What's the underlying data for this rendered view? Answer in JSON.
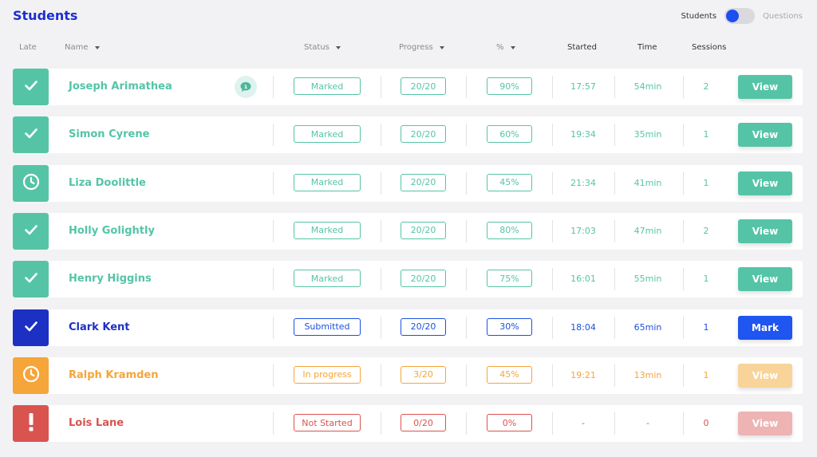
{
  "header": {
    "title": "Students",
    "toggle_left": "Students",
    "toggle_right": "Questions"
  },
  "columns": {
    "late": "Late",
    "name": "Name",
    "status": "Status",
    "progress": "Progress",
    "percent": "%",
    "started": "Started",
    "time": "Time",
    "sessions": "Sessions"
  },
  "colors": {
    "teal": "#55c4a6",
    "orange": "#f5a53a",
    "blue": "#1d3ec9",
    "red": "#d9534f"
  },
  "students": [
    {
      "name": "Joseph Arimathea",
      "status": "Marked",
      "progress": "20/20",
      "percent": "90%",
      "started": "17:57",
      "time": "54min",
      "sessions": "2",
      "action": "View",
      "state": "marked",
      "icon": "check-icon",
      "comment_badge": "1"
    },
    {
      "name": "Simon Cyrene",
      "status": "Marked",
      "progress": "20/20",
      "percent": "60%",
      "started": "19:34",
      "time": "35min",
      "sessions": "1",
      "action": "View",
      "state": "marked",
      "icon": "check-icon"
    },
    {
      "name": "Liza Doolittle",
      "status": "Marked",
      "progress": "20/20",
      "percent": "45%",
      "started": "21:34",
      "time": "41min",
      "sessions": "1",
      "action": "View",
      "state": "marked",
      "icon": "clock-icon"
    },
    {
      "name": "Holly Golightly",
      "status": "Marked",
      "progress": "20/20",
      "percent": "80%",
      "started": "17:03",
      "time": "47min",
      "sessions": "2",
      "action": "View",
      "state": "marked",
      "icon": "check-icon"
    },
    {
      "name": "Henry Higgins",
      "status": "Marked",
      "progress": "20/20",
      "percent": "75%",
      "started": "16:01",
      "time": "55min",
      "sessions": "1",
      "action": "View",
      "state": "marked",
      "icon": "check-icon"
    },
    {
      "name": "Clark Kent",
      "status": "Submitted",
      "progress": "20/20",
      "percent": "30%",
      "started": "18:04",
      "time": "65min",
      "sessions": "1",
      "action": "Mark",
      "state": "submitted",
      "icon": "check-icon"
    },
    {
      "name": "Ralph Kramden",
      "status": "In progress",
      "progress": "3/20",
      "percent": "45%",
      "started": "19:21",
      "time": "13min",
      "sessions": "1",
      "action": "View",
      "state": "progress",
      "icon": "clock-icon"
    },
    {
      "name": "Lois Lane",
      "status": "Not Started",
      "progress": "0/20",
      "percent": "0%",
      "started": "-",
      "time": "-",
      "sessions": "0",
      "action": "View",
      "state": "notstarted",
      "icon": "exclamation-icon"
    }
  ]
}
